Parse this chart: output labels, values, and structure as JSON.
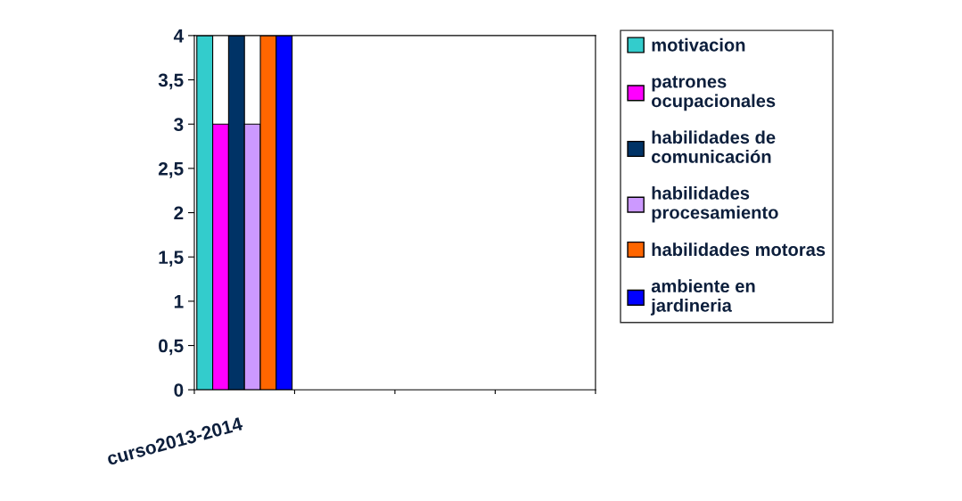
{
  "chart_data": {
    "type": "bar",
    "categories": [
      "curso2013-2014",
      null,
      null,
      null
    ],
    "series": [
      {
        "name": "motivacion",
        "color": "#33cccc",
        "values": [
          4,
          null,
          null,
          null
        ]
      },
      {
        "name": "patrones ocupacionales",
        "color": "#ff00ff",
        "values": [
          3,
          null,
          null,
          null
        ]
      },
      {
        "name": "habilidades de comunicación",
        "color": "#003366",
        "values": [
          4,
          null,
          null,
          null
        ]
      },
      {
        "name": "habilidades procesamiento",
        "color": "#cc99ff",
        "values": [
          3,
          null,
          null,
          null
        ]
      },
      {
        "name": "habilidades motoras",
        "color": "#ff6600",
        "values": [
          4,
          null,
          null,
          null
        ]
      },
      {
        "name": " ambiente en jardineria",
        "color": "#0000ff",
        "values": [
          4,
          null,
          null,
          null
        ]
      }
    ],
    "ylim": [
      0,
      4
    ],
    "yticks": [
      0,
      {
        "value": 0.5,
        "label": "0,5"
      },
      1,
      {
        "value": 1.5,
        "label": "1,5"
      },
      2,
      {
        "value": 2.5,
        "label": "2,5"
      },
      3,
      {
        "value": 3.5,
        "label": "3,5"
      },
      4
    ],
    "grid": false,
    "legend": "right"
  }
}
